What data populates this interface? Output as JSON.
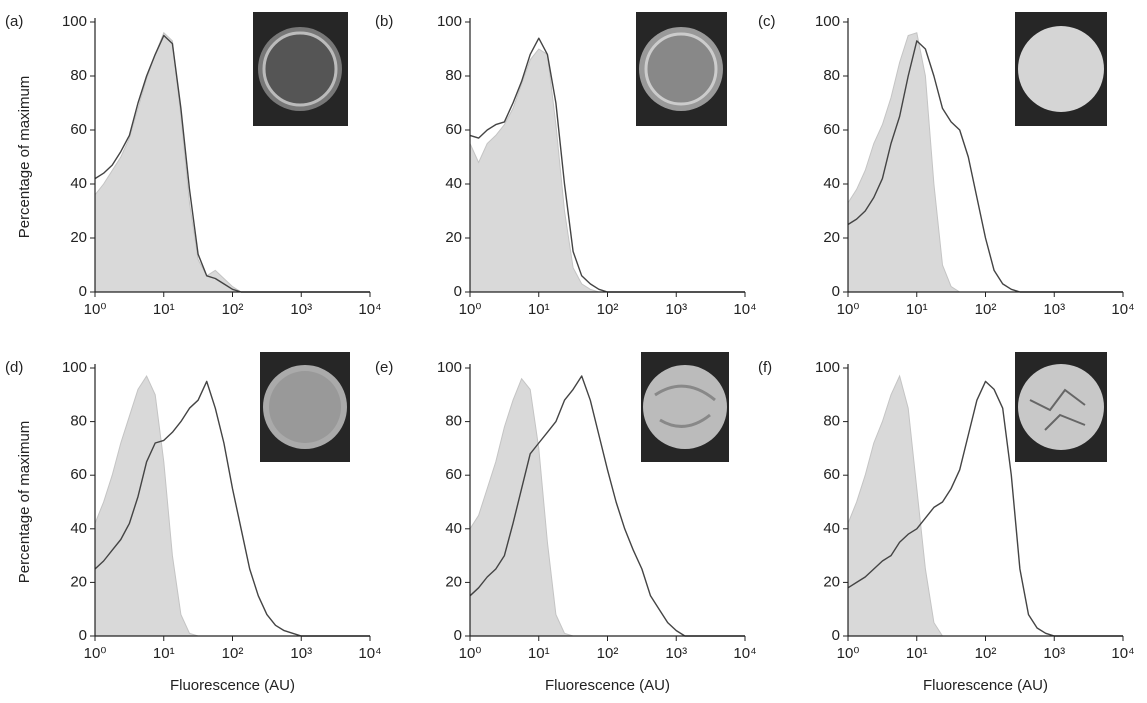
{
  "chart_data": [
    {
      "type": "line",
      "label": "(a)",
      "y_label": "Percentage of maximum",
      "xscale": "log",
      "x": [
        1,
        1.334,
        1.778,
        2.371,
        3.162,
        4.217,
        5.623,
        7.499,
        10,
        13.34,
        17.78,
        23.71,
        31.62,
        42.17,
        56.23,
        74.99,
        100,
        133.4,
        177.8,
        237.1,
        316.2,
        421.7,
        562.3,
        749.9,
        1000,
        1334,
        1778,
        2371,
        3162,
        4217,
        5623,
        7499,
        10000
      ],
      "series": [
        {
          "color": "#d9d9d9",
          "filled": true,
          "values": [
            36,
            40,
            45,
            50,
            57,
            68,
            79,
            88,
            96,
            93,
            65,
            33,
            12,
            6,
            8,
            5,
            2,
            0,
            0,
            0,
            0,
            0,
            0,
            0,
            0,
            0,
            0,
            0,
            0,
            0,
            0,
            0,
            0
          ]
        },
        {
          "color": "#444444",
          "filled": false,
          "values": [
            42,
            44,
            47,
            52,
            58,
            70,
            80,
            88,
            95,
            92,
            68,
            38,
            14,
            6,
            5,
            3,
            1,
            0,
            0,
            0,
            0,
            0,
            0,
            0,
            0,
            0,
            0,
            0,
            0,
            0,
            0,
            0,
            0
          ]
        }
      ],
      "xlim": [
        1,
        10000
      ],
      "ylim": [
        0,
        100
      ],
      "xticks": [
        {
          "value": 1,
          "label": "10⁰"
        },
        {
          "value": 10,
          "label": "10¹"
        },
        {
          "value": 100,
          "label": "10²"
        },
        {
          "value": 1000,
          "label": "10³"
        },
        {
          "value": 10000,
          "label": "10⁴"
        }
      ],
      "yticks": [
        0,
        20,
        40,
        60,
        80,
        100
      ]
    },
    {
      "type": "line",
      "label": "(b)",
      "xscale": "log",
      "x": [
        1,
        1.334,
        1.778,
        2.371,
        3.162,
        4.217,
        5.623,
        7.499,
        10,
        13.34,
        17.78,
        23.71,
        31.62,
        42.17,
        56.23,
        74.99,
        100,
        133.4,
        177.8,
        237.1,
        316.2,
        421.7,
        562.3,
        749.9,
        1000,
        1334,
        1778,
        2371,
        3162,
        4217,
        5623,
        7499,
        10000
      ],
      "series": [
        {
          "color": "#d9d9d9",
          "filled": true,
          "values": [
            55,
            48,
            55,
            58,
            62,
            68,
            77,
            86,
            90,
            88,
            62,
            30,
            9,
            3,
            1,
            0,
            0,
            0,
            0,
            0,
            0,
            0,
            0,
            0,
            0,
            0,
            0,
            0,
            0,
            0,
            0,
            0,
            0
          ]
        },
        {
          "color": "#444444",
          "filled": false,
          "values": [
            58,
            57,
            60,
            62,
            63,
            70,
            78,
            88,
            94,
            88,
            70,
            40,
            15,
            6,
            3,
            1,
            0,
            0,
            0,
            0,
            0,
            0,
            0,
            0,
            0,
            0,
            0,
            0,
            0,
            0,
            0,
            0,
            0
          ]
        }
      ],
      "xlim": [
        1,
        10000
      ],
      "ylim": [
        0,
        100
      ],
      "xticks": [
        {
          "value": 1,
          "label": "10⁰"
        },
        {
          "value": 10,
          "label": "10¹"
        },
        {
          "value": 100,
          "label": "10²"
        },
        {
          "value": 1000,
          "label": "10³"
        },
        {
          "value": 10000,
          "label": "10⁴"
        }
      ],
      "yticks": [
        0,
        20,
        40,
        60,
        80,
        100
      ]
    },
    {
      "type": "line",
      "label": "(c)",
      "xscale": "log",
      "x": [
        1,
        1.334,
        1.778,
        2.371,
        3.162,
        4.217,
        5.623,
        7.499,
        10,
        13.34,
        17.78,
        23.71,
        31.62,
        42.17,
        56.23,
        74.99,
        100,
        133.4,
        177.8,
        237.1,
        316.2,
        421.7,
        562.3,
        749.9,
        1000,
        1334,
        1778,
        2371,
        3162,
        4217,
        5623,
        7499,
        10000
      ],
      "series": [
        {
          "color": "#d9d9d9",
          "filled": true,
          "values": [
            33,
            38,
            45,
            55,
            62,
            72,
            85,
            95,
            96,
            80,
            40,
            10,
            2,
            0,
            0,
            0,
            0,
            0,
            0,
            0,
            0,
            0,
            0,
            0,
            0,
            0,
            0,
            0,
            0,
            0,
            0,
            0,
            0
          ]
        },
        {
          "color": "#444444",
          "filled": false,
          "values": [
            25,
            27,
            30,
            35,
            42,
            55,
            65,
            80,
            93,
            90,
            80,
            68,
            63,
            60,
            50,
            35,
            20,
            8,
            3,
            1,
            0,
            0,
            0,
            0,
            0,
            0,
            0,
            0,
            0,
            0,
            0,
            0,
            0
          ]
        }
      ],
      "xlim": [
        1,
        10000
      ],
      "ylim": [
        0,
        100
      ],
      "xticks": [
        {
          "value": 1,
          "label": "10⁰"
        },
        {
          "value": 10,
          "label": "10¹"
        },
        {
          "value": 100,
          "label": "10²"
        },
        {
          "value": 1000,
          "label": "10³"
        },
        {
          "value": 10000,
          "label": "10⁴"
        }
      ],
      "yticks": [
        0,
        20,
        40,
        60,
        80,
        100
      ]
    },
    {
      "type": "line",
      "label": "(d)",
      "y_label": "Percentage of maximum",
      "x_label": "Fluorescence (AU)",
      "xscale": "log",
      "x": [
        1,
        1.334,
        1.778,
        2.371,
        3.162,
        4.217,
        5.623,
        7.499,
        10,
        13.34,
        17.78,
        23.71,
        31.62,
        42.17,
        56.23,
        74.99,
        100,
        133.4,
        177.8,
        237.1,
        316.2,
        421.7,
        562.3,
        749.9,
        1000,
        1334,
        1778,
        2371,
        3162,
        4217,
        5623,
        7499,
        10000
      ],
      "series": [
        {
          "color": "#d9d9d9",
          "filled": true,
          "values": [
            42,
            50,
            60,
            72,
            82,
            92,
            97,
            90,
            65,
            30,
            8,
            1,
            0,
            0,
            0,
            0,
            0,
            0,
            0,
            0,
            0,
            0,
            0,
            0,
            0,
            0,
            0,
            0,
            0,
            0,
            0,
            0,
            0
          ]
        },
        {
          "color": "#444444",
          "filled": false,
          "values": [
            25,
            28,
            32,
            36,
            42,
            52,
            65,
            72,
            73,
            76,
            80,
            85,
            88,
            95,
            85,
            72,
            55,
            40,
            25,
            15,
            8,
            4,
            2,
            1,
            0,
            0,
            0,
            0,
            0,
            0,
            0,
            0,
            0
          ]
        }
      ],
      "xlim": [
        1,
        10000
      ],
      "ylim": [
        0,
        100
      ],
      "xticks": [
        {
          "value": 1,
          "label": "10⁰"
        },
        {
          "value": 10,
          "label": "10¹"
        },
        {
          "value": 100,
          "label": "10²"
        },
        {
          "value": 1000,
          "label": "10³"
        },
        {
          "value": 10000,
          "label": "10⁴"
        }
      ],
      "yticks": [
        0,
        20,
        40,
        60,
        80,
        100
      ]
    },
    {
      "type": "line",
      "label": "(e)",
      "x_label": "Fluorescence (AU)",
      "xscale": "log",
      "x": [
        1,
        1.334,
        1.778,
        2.371,
        3.162,
        4.217,
        5.623,
        7.499,
        10,
        13.34,
        17.78,
        23.71,
        31.62,
        42.17,
        56.23,
        74.99,
        100,
        133.4,
        177.8,
        237.1,
        316.2,
        421.7,
        562.3,
        749.9,
        1000,
        1334,
        1778,
        2371,
        3162,
        4217,
        5623,
        7499,
        10000
      ],
      "series": [
        {
          "color": "#d9d9d9",
          "filled": true,
          "values": [
            40,
            45,
            55,
            65,
            78,
            88,
            96,
            92,
            70,
            35,
            8,
            1,
            0,
            0,
            0,
            0,
            0,
            0,
            0,
            0,
            0,
            0,
            0,
            0,
            0,
            0,
            0,
            0,
            0,
            0,
            0,
            0,
            0
          ]
        },
        {
          "color": "#444444",
          "filled": false,
          "values": [
            15,
            18,
            22,
            25,
            30,
            42,
            55,
            68,
            72,
            76,
            80,
            88,
            92,
            97,
            88,
            75,
            62,
            50,
            40,
            32,
            25,
            15,
            10,
            5,
            2,
            0,
            0,
            0,
            0,
            0,
            0,
            0,
            0
          ]
        }
      ],
      "xlim": [
        1,
        10000
      ],
      "ylim": [
        0,
        100
      ],
      "xticks": [
        {
          "value": 1,
          "label": "10⁰"
        },
        {
          "value": 10,
          "label": "10¹"
        },
        {
          "value": 100,
          "label": "10²"
        },
        {
          "value": 1000,
          "label": "10³"
        },
        {
          "value": 10000,
          "label": "10⁴"
        }
      ],
      "yticks": [
        0,
        20,
        40,
        60,
        80,
        100
      ]
    },
    {
      "type": "line",
      "label": "(f)",
      "x_label": "Fluorescence (AU)",
      "xscale": "log",
      "x": [
        1,
        1.334,
        1.778,
        2.371,
        3.162,
        4.217,
        5.623,
        7.499,
        10,
        13.34,
        17.78,
        23.71,
        31.62,
        42.17,
        56.23,
        74.99,
        100,
        133.4,
        177.8,
        237.1,
        316.2,
        421.7,
        562.3,
        749.9,
        1000,
        1334,
        1778,
        2371,
        3162,
        4217,
        5623,
        7499,
        10000
      ],
      "series": [
        {
          "color": "#d9d9d9",
          "filled": true,
          "values": [
            42,
            50,
            60,
            72,
            80,
            90,
            97,
            85,
            55,
            25,
            5,
            0,
            0,
            0,
            0,
            0,
            0,
            0,
            0,
            0,
            0,
            0,
            0,
            0,
            0,
            0,
            0,
            0,
            0,
            0,
            0,
            0,
            0
          ]
        },
        {
          "color": "#444444",
          "filled": false,
          "values": [
            18,
            20,
            22,
            25,
            28,
            30,
            35,
            38,
            40,
            44,
            48,
            50,
            55,
            62,
            75,
            88,
            95,
            92,
            85,
            60,
            25,
            8,
            3,
            1,
            0,
            0,
            0,
            0,
            0,
            0,
            0,
            0,
            0
          ]
        }
      ],
      "xlim": [
        1,
        10000
      ],
      "ylim": [
        0,
        100
      ],
      "xticks": [
        {
          "value": 1,
          "label": "10⁰"
        },
        {
          "value": 10,
          "label": "10¹"
        },
        {
          "value": 100,
          "label": "10²"
        },
        {
          "value": 1000,
          "label": "10³"
        },
        {
          "value": 10000,
          "label": "10⁴"
        }
      ],
      "yticks": [
        0,
        20,
        40,
        60,
        80,
        100
      ]
    }
  ]
}
